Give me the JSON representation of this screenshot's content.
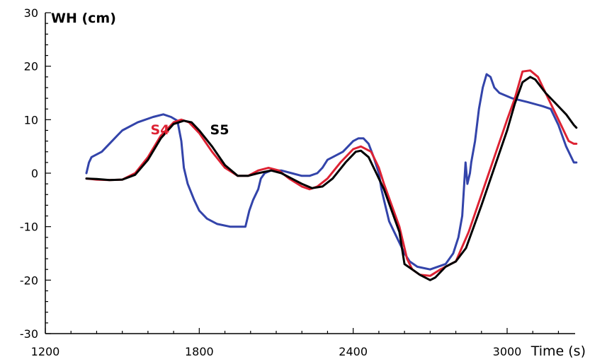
{
  "chart_data": {
    "type": "line",
    "title": "",
    "xlabel": "Time (s)",
    "ylabel": "WH (cm)",
    "xlim": [
      1200,
      3300
    ],
    "ylim": [
      -30,
      30
    ],
    "x_ticks": [
      1200,
      1800,
      2400,
      3000
    ],
    "y_ticks": [
      -30,
      -20,
      -10,
      0,
      10,
      20,
      30
    ],
    "grid": false,
    "series": [
      {
        "name": "",
        "color": "#3344aa",
        "points": [
          [
            1360,
            0
          ],
          [
            1370,
            2
          ],
          [
            1380,
            3
          ],
          [
            1420,
            4
          ],
          [
            1460,
            6
          ],
          [
            1480,
            7
          ],
          [
            1500,
            8
          ],
          [
            1560,
            9.5
          ],
          [
            1620,
            10.5
          ],
          [
            1660,
            11
          ],
          [
            1690,
            10.5
          ],
          [
            1715,
            9.8
          ],
          [
            1730,
            6
          ],
          [
            1740,
            1
          ],
          [
            1755,
            -2
          ],
          [
            1780,
            -5
          ],
          [
            1800,
            -7
          ],
          [
            1830,
            -8.5
          ],
          [
            1870,
            -9.5
          ],
          [
            1920,
            -10
          ],
          [
            1960,
            -10
          ],
          [
            1980,
            -10
          ],
          [
            1995,
            -7
          ],
          [
            2010,
            -5
          ],
          [
            2030,
            -3
          ],
          [
            2040,
            -1
          ],
          [
            2055,
            0
          ],
          [
            2080,
            0.5
          ],
          [
            2120,
            0.5
          ],
          [
            2160,
            0
          ],
          [
            2200,
            -0.5
          ],
          [
            2230,
            -0.5
          ],
          [
            2260,
            0
          ],
          [
            2280,
            1
          ],
          [
            2300,
            2.5
          ],
          [
            2320,
            3
          ],
          [
            2360,
            4
          ],
          [
            2380,
            5
          ],
          [
            2400,
            6
          ],
          [
            2420,
            6.5
          ],
          [
            2440,
            6.5
          ],
          [
            2460,
            5.5
          ],
          [
            2480,
            3
          ],
          [
            2500,
            0
          ],
          [
            2510,
            -3
          ],
          [
            2525,
            -6
          ],
          [
            2540,
            -9
          ],
          [
            2560,
            -11
          ],
          [
            2580,
            -13
          ],
          [
            2600,
            -15
          ],
          [
            2620,
            -16.5
          ],
          [
            2650,
            -17.5
          ],
          [
            2700,
            -18
          ],
          [
            2760,
            -17
          ],
          [
            2790,
            -15
          ],
          [
            2810,
            -12
          ],
          [
            2825,
            -8
          ],
          [
            2838,
            2
          ],
          [
            2845,
            -2
          ],
          [
            2855,
            0
          ],
          [
            2860,
            2
          ],
          [
            2875,
            6
          ],
          [
            2890,
            12
          ],
          [
            2905,
            16
          ],
          [
            2920,
            18.5
          ],
          [
            2935,
            18
          ],
          [
            2950,
            16
          ],
          [
            2970,
            15
          ],
          [
            3020,
            14
          ],
          [
            3080,
            13.3
          ],
          [
            3140,
            12.5
          ],
          [
            3170,
            12
          ],
          [
            3200,
            9
          ],
          [
            3230,
            5
          ],
          [
            3260,
            2
          ],
          [
            3270,
            2
          ]
        ]
      },
      {
        "name": "S4",
        "color": "#dd2233",
        "points": [
          [
            1360,
            -1
          ],
          [
            1400,
            -1.2
          ],
          [
            1450,
            -1.3
          ],
          [
            1500,
            -1.2
          ],
          [
            1550,
            0
          ],
          [
            1600,
            3
          ],
          [
            1650,
            7
          ],
          [
            1700,
            9.5
          ],
          [
            1730,
            10
          ],
          [
            1760,
            9.5
          ],
          [
            1800,
            7.5
          ],
          [
            1850,
            4
          ],
          [
            1900,
            1
          ],
          [
            1950,
            -0.5
          ],
          [
            1990,
            -0.5
          ],
          [
            2030,
            0.5
          ],
          [
            2070,
            1
          ],
          [
            2110,
            0.5
          ],
          [
            2150,
            -1
          ],
          [
            2200,
            -2.5
          ],
          [
            2230,
            -3
          ],
          [
            2260,
            -2.5
          ],
          [
            2300,
            -1
          ],
          [
            2350,
            2
          ],
          [
            2400,
            4.5
          ],
          [
            2430,
            5
          ],
          [
            2470,
            4
          ],
          [
            2500,
            1
          ],
          [
            2520,
            -2
          ],
          [
            2550,
            -6
          ],
          [
            2580,
            -10
          ],
          [
            2610,
            -16
          ],
          [
            2630,
            -18
          ],
          [
            2660,
            -19
          ],
          [
            2700,
            -19.2
          ],
          [
            2740,
            -18
          ],
          [
            2780,
            -17
          ],
          [
            2800,
            -16.5
          ],
          [
            2850,
            -11
          ],
          [
            2900,
            -4
          ],
          [
            2950,
            3
          ],
          [
            3000,
            10
          ],
          [
            3030,
            14
          ],
          [
            3060,
            19
          ],
          [
            3090,
            19.2
          ],
          [
            3120,
            18
          ],
          [
            3150,
            15
          ],
          [
            3180,
            12
          ],
          [
            3210,
            9
          ],
          [
            3240,
            6
          ],
          [
            3260,
            5.5
          ],
          [
            3270,
            5.5
          ]
        ]
      },
      {
        "name": "S5",
        "color": "#000000",
        "points": [
          [
            1360,
            -1
          ],
          [
            1400,
            -1.1
          ],
          [
            1450,
            -1.3
          ],
          [
            1500,
            -1.2
          ],
          [
            1550,
            -0.3
          ],
          [
            1600,
            2.5
          ],
          [
            1650,
            6.5
          ],
          [
            1700,
            9.2
          ],
          [
            1740,
            9.8
          ],
          [
            1770,
            9.5
          ],
          [
            1800,
            8
          ],
          [
            1850,
            5
          ],
          [
            1900,
            1.5
          ],
          [
            1950,
            -0.5
          ],
          [
            1990,
            -0.5
          ],
          [
            2030,
            0
          ],
          [
            2080,
            0.5
          ],
          [
            2120,
            0
          ],
          [
            2160,
            -1
          ],
          [
            2200,
            -2
          ],
          [
            2240,
            -2.8
          ],
          [
            2280,
            -2.5
          ],
          [
            2320,
            -1
          ],
          [
            2370,
            2
          ],
          [
            2410,
            4
          ],
          [
            2430,
            4.2
          ],
          [
            2460,
            3
          ],
          [
            2490,
            0
          ],
          [
            2520,
            -3
          ],
          [
            2550,
            -7
          ],
          [
            2580,
            -11
          ],
          [
            2600,
            -17
          ],
          [
            2630,
            -18
          ],
          [
            2660,
            -19
          ],
          [
            2700,
            -20
          ],
          [
            2720,
            -19.5
          ],
          [
            2760,
            -17.5
          ],
          [
            2800,
            -16.5
          ],
          [
            2840,
            -14
          ],
          [
            2870,
            -10
          ],
          [
            2900,
            -6
          ],
          [
            2950,
            1
          ],
          [
            3000,
            8
          ],
          [
            3030,
            13
          ],
          [
            3060,
            17
          ],
          [
            3090,
            18
          ],
          [
            3110,
            17.5
          ],
          [
            3150,
            15
          ],
          [
            3200,
            12.5
          ],
          [
            3230,
            11
          ],
          [
            3260,
            9
          ],
          [
            3270,
            8.5
          ]
        ]
      }
    ],
    "annotations": [
      {
        "text": "S4",
        "color": "#dd2233",
        "x": 1610,
        "y": 7.3
      },
      {
        "text": "S5",
        "color": "#000000",
        "x": 1842,
        "y": 7.3
      }
    ]
  }
}
